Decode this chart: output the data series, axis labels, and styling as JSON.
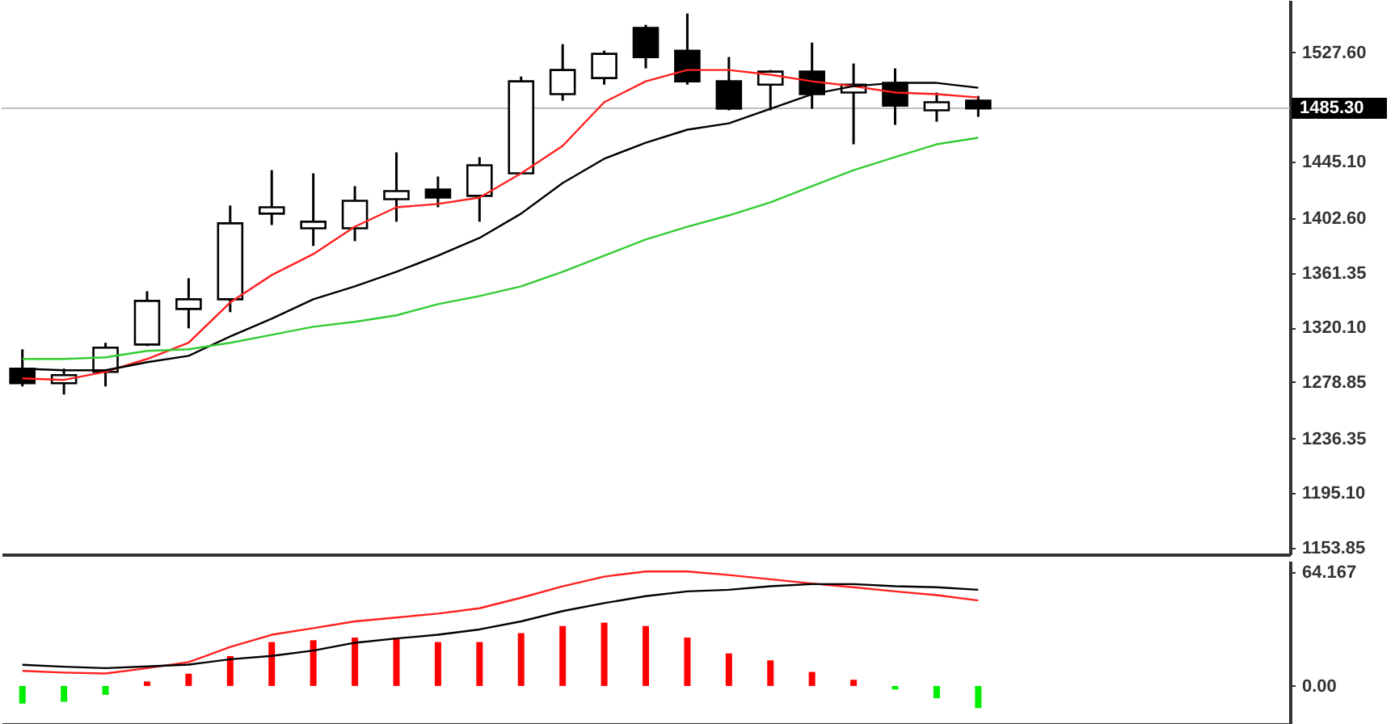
{
  "chart_data": [
    {
      "type": "candlestick",
      "categories": [
        null,
        null,
        null,
        null,
        null,
        null,
        null,
        null,
        null,
        null,
        null,
        null,
        null,
        null,
        null,
        null,
        null,
        null,
        null,
        null,
        null,
        null,
        null,
        null,
        null,
        null,
        null,
        null,
        null,
        null,
        null
      ],
      "ohlc": [
        [
          1289.0,
          1303.6,
          1275.6,
          1278.0
        ],
        [
          1278.0,
          1289.0,
          1269.5,
          1284.1
        ],
        [
          1286.6,
          1308.5,
          1275.6,
          1304.8
        ],
        [
          1307.2,
          1347.4,
          1306.0,
          1340.1
        ],
        [
          1334.0,
          1357.2,
          1319.4,
          1341.3
        ],
        [
          1341.3,
          1412.0,
          1331.6,
          1398.6
        ],
        [
          1405.9,
          1438.7,
          1397.3,
          1410.7
        ],
        [
          1394.9,
          1436.3,
          1381.5,
          1399.8
        ],
        [
          1394.9,
          1426.6,
          1385.2,
          1415.6
        ],
        [
          1416.8,
          1452.1,
          1399.8,
          1422.9
        ],
        [
          1424.1,
          1433.9,
          1410.7,
          1418.0
        ],
        [
          1419.3,
          1448.5,
          1399.8,
          1442.4
        ],
        [
          1436.3,
          1509.3,
          1436.3,
          1505.7
        ],
        [
          1496.0,
          1533.7,
          1491.1,
          1514.2
        ],
        [
          1508.1,
          1528.8,
          1503.2,
          1526.4
        ],
        [
          1545.9,
          1548.3,
          1515.4,
          1523.9
        ],
        [
          1528.8,
          1556.8,
          1503.2,
          1505.7
        ],
        [
          1505.7,
          1524.0,
          1483.8,
          1485.0
        ],
        [
          1503.2,
          1514.2,
          1483.8,
          1513.0
        ],
        [
          1513.0,
          1534.9,
          1485.0,
          1496.0
        ],
        [
          1497.2,
          1519.1,
          1458.2,
          1503.2
        ],
        [
          1504.5,
          1515.4,
          1472.8,
          1487.4
        ],
        [
          1483.8,
          1497.2,
          1475.2,
          1489.9
        ],
        [
          1491.1,
          1494.7,
          1478.9,
          1485.3
        ],
        null,
        null,
        null,
        null,
        null,
        null,
        null
      ],
      "series": [
        {
          "type": "line",
          "color": "#ff2020",
          "values": [
            1281.7,
            1280.5,
            1286.6,
            1296.3,
            1308.5,
            1338.9,
            1359.6,
            1375.4,
            1396.1,
            1410.7,
            1413.2,
            1418.0,
            1436.3,
            1457.0,
            1489.9,
            1505.7,
            1514.2,
            1514.2,
            1510.6,
            1505.7,
            1502.0,
            1497.2,
            1496.0,
            1493.5,
            null,
            null,
            null,
            null,
            null,
            null,
            null
          ]
        },
        {
          "type": "line",
          "color": "#000000",
          "values": [
            1289.0,
            1287.8,
            1287.8,
            1293.9,
            1298.7,
            1313.3,
            1326.7,
            1341.3,
            1351.1,
            1362.0,
            1374.2,
            1387.6,
            1405.9,
            1429.0,
            1447.3,
            1459.4,
            1469.2,
            1474.0,
            1485.0,
            1496.0,
            1502.0,
            1504.5,
            1504.5,
            1500.8,
            null,
            null,
            null,
            null,
            null,
            null,
            null
          ]
        },
        {
          "type": "line",
          "color": "#33cc33",
          "values": [
            1296.3,
            1296.3,
            1297.5,
            1302.4,
            1303.6,
            1308.5,
            1314.5,
            1320.6,
            1324.3,
            1329.2,
            1337.7,
            1343.8,
            1351.1,
            1362.0,
            1374.2,
            1386.4,
            1396.0,
            1404.6,
            1414.4,
            1426.6,
            1438.7,
            1448.5,
            1458.2,
            1463.1,
            null,
            null,
            null,
            null,
            null,
            null,
            null
          ]
        }
      ],
      "ylim": [
        1149,
        1567
      ],
      "yticks": [
        {
          "value": 1153.85,
          "label": "1153.85"
        },
        {
          "value": 1195.1,
          "label": "1195.10"
        },
        {
          "value": 1236.35,
          "label": "1236.35"
        },
        {
          "value": 1278.85,
          "label": "1278.85"
        },
        {
          "value": 1320.1,
          "label": "1320.10"
        },
        {
          "value": 1361.35,
          "label": "1361.35"
        },
        {
          "value": 1402.6,
          "label": "1402.60"
        },
        {
          "value": 1445.1,
          "label": "1445.10"
        },
        {
          "value": 1527.6,
          "label": "1527.60"
        }
      ],
      "ref_lines": [
        {
          "axis": "y",
          "value": 1485.3,
          "label": "1485.30",
          "color": "#c0c0c0"
        }
      ],
      "tick_labels": "y"
    },
    {
      "type": "bar",
      "categories": [
        null,
        null,
        null,
        null,
        null,
        null,
        null,
        null,
        null,
        null,
        null,
        null,
        null,
        null,
        null,
        null,
        null,
        null,
        null,
        null,
        null,
        null,
        null,
        null,
        null,
        null,
        null,
        null,
        null,
        null,
        null
      ],
      "values": [
        -9.9,
        -8.9,
        -5.0,
        2.5,
        6.9,
        16.8,
        24.7,
        25.7,
        27.2,
        27.2,
        24.7,
        24.7,
        29.7,
        33.7,
        35.6,
        33.7,
        27.2,
        18.3,
        14.4,
        7.9,
        3.5,
        -2.0,
        -6.9,
        -12.4,
        null,
        null,
        null,
        null,
        null,
        null,
        null
      ],
      "colors": [
        "#00ee00",
        "#00ee00",
        "#00ee00",
        "#ff0000",
        "#ff0000",
        "#ff0000",
        "#ff0000",
        "#ff0000",
        "#ff0000",
        "#ff0000",
        "#ff0000",
        "#ff0000",
        "#ff0000",
        "#ff0000",
        "#ff0000",
        "#ff0000",
        "#ff0000",
        "#ff0000",
        "#ff0000",
        "#ff0000",
        "#ff0000",
        "#00ee00",
        "#00ee00",
        "#00ee00",
        null,
        null,
        null,
        null,
        null,
        null,
        null
      ],
      "series": [
        {
          "type": "line",
          "color": "#ff2020",
          "values": [
            8.5,
            7.5,
            7.0,
            10.0,
            13.4,
            21.9,
            28.8,
            32.5,
            36.3,
            38.5,
            40.7,
            43.7,
            49.6,
            56.0,
            61.5,
            64.4,
            64.4,
            62.4,
            60.0,
            57.6,
            55.5,
            53.2,
            51.1,
            48.1,
            null,
            null,
            null,
            null,
            null,
            null,
            null
          ]
        },
        {
          "type": "line",
          "color": "#000000",
          "values": [
            11.9,
            10.8,
            10.0,
            11.0,
            12.0,
            15.0,
            16.9,
            19.9,
            24.3,
            26.7,
            28.8,
            31.8,
            36.3,
            42.1,
            46.6,
            50.5,
            53.2,
            54.1,
            56.1,
            57.3,
            57.3,
            56.1,
            55.5,
            54.1,
            null,
            null,
            null,
            null,
            null,
            null,
            null
          ]
        }
      ],
      "ylim": [
        -21.4,
        70.4
      ],
      "yticks": [
        {
          "value": 0,
          "label": "0.00"
        },
        64.167
      ],
      "tick_labels": "y"
    }
  ]
}
